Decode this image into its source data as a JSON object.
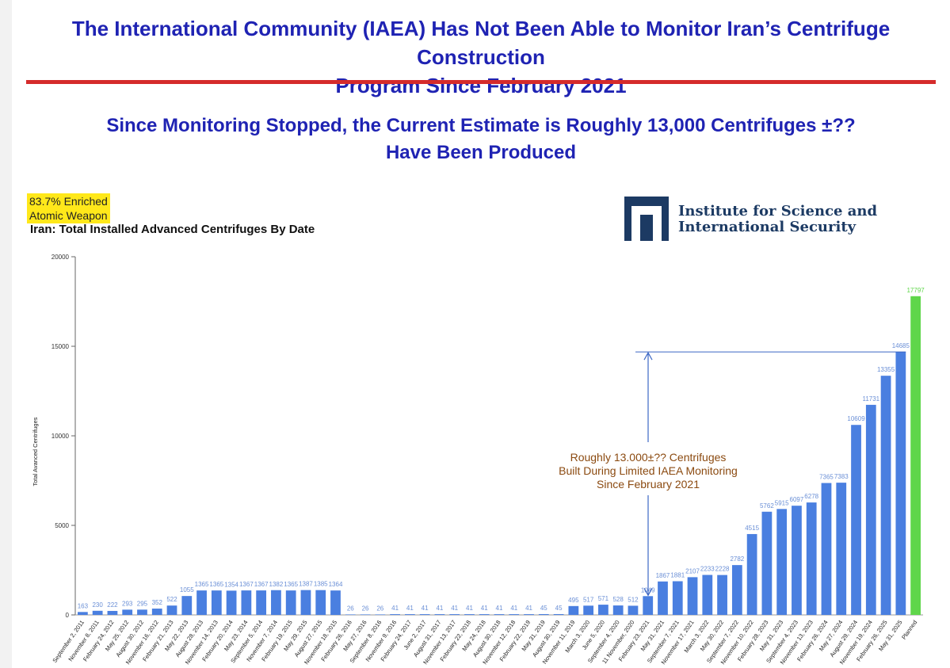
{
  "slide": {
    "title_line1": "The International Community (IAEA) Has Not Been Able to Monitor Iran’s Centrifuge Construction",
    "title_line2": "Program Since February 2021",
    "subtitle_line1": "Since Monitoring Stopped, the Current Estimate is Roughly 13,000 Centrifuges ±??",
    "subtitle_line2": "Have Been Produced",
    "weapon_note_line1": "83.7% Enriched",
    "weapon_note_line2": "Atomic Weapon",
    "chart_heading": "Iran: Total Installed Advanced Centrifuges By Date",
    "org_line1": "Institute for Science and",
    "org_line2": "International Security",
    "colors": {
      "title": "#1f23b3",
      "rule": "#d52b2b",
      "bar": "#4a7fe0",
      "planned": "#5fd64a",
      "annotation": "#8b4a10"
    }
  },
  "chart_data": {
    "type": "bar",
    "title": "Iran: Total Installed Advanced Centrifuges By Date",
    "xlabel": "",
    "ylabel": "Total Avanced Centrifuges",
    "ylim": [
      0,
      20000
    ],
    "yticks": [
      0,
      5000,
      10000,
      15000,
      20000
    ],
    "categories": [
      "September 2, 2011",
      "November 8, 2011",
      "February 24, 2012",
      "May 25, 2012",
      "August 30, 2012",
      "November 16, 2012",
      "February 21, 2013",
      "May 22, 2013",
      "August 28, 2013",
      "November 14, 2013",
      "February 20, 2014",
      "May 23, 2014",
      "September 5, 2014",
      "November 7, 2014",
      "February 19, 2015",
      "May 29, 2015",
      "August 27, 2015",
      "November 18, 2015",
      "February 26, 2016",
      "May 27, 2016",
      "September 8, 2016",
      "November 9, 2016",
      "February 24, 2017",
      "June 2, 2017",
      "August 31, 2017",
      "November 13, 2017",
      "February 22, 2018",
      "May 24, 2018",
      "August 30, 2018",
      "November 12, 2018",
      "February 22, 2019",
      "May 31, 2019",
      "August 30, 2019",
      "November 11, 2019",
      "March 3, 2020",
      "June 5, 2020",
      "September 4, 2020",
      "11 November, 2020",
      "February 23, 2021",
      "May 31, 2021",
      "September 7, 2021",
      "November 17, 2021",
      "March 3, 2022",
      "May 30, 2022",
      "September 7, 2022",
      "November 10, 2022",
      "February 28, 2023",
      "May 31, 2023",
      "September 4, 2023",
      "November 13, 2023",
      "February 26, 2024",
      "May 27, 2024",
      "August 29, 2024",
      "November 19, 2024",
      "February 26, 2025",
      "May 31, 2025",
      "Planned"
    ],
    "values": [
      163,
      230,
      222,
      293,
      295,
      352,
      522,
      1055,
      1365,
      1365,
      1354,
      1367,
      1367,
      1382,
      1365,
      1387,
      1385,
      1364,
      26,
      26,
      26,
      41,
      41,
      41,
      41,
      41,
      41,
      41,
      41,
      41,
      41,
      45,
      45,
      495,
      517,
      571,
      528,
      512,
      1049,
      1867,
      1881,
      2107,
      2233,
      2228,
      2782,
      4515,
      5762,
      5915,
      6097,
      6278,
      7365,
      7383,
      10609,
      11731,
      13355,
      14685,
      17797
    ],
    "labels": [
      "163",
      "230",
      "222",
      "293",
      "295",
      "352",
      "522",
      "1055",
      "1365",
      "1365",
      "1354",
      "1367",
      "1367",
      "1382",
      "1365",
      "1387",
      "1385",
      "1364",
      "26",
      "26",
      "26",
      "41",
      "41",
      "41",
      "41",
      "41",
      "41",
      "41",
      "41",
      "41",
      "41",
      "45",
      "45",
      "495",
      "517",
      "571",
      "528",
      "512",
      "1049",
      "1867",
      "1881",
      "2107",
      "2233",
      "2228",
      "2782",
      "4515",
      "5762",
      "5915",
      "6097",
      "6278",
      "7365",
      "7383",
      "10609",
      "11731",
      "13355",
      "14685",
      "17797"
    ],
    "series_colors": {
      "reported": "#4a7fe0",
      "planned": "#5fd64a"
    },
    "annotation": {
      "lines": [
        "Roughly 13.000±?? Centrifuges",
        "Built During Limited IAEA Monitoring",
        "Since February 2021"
      ],
      "from_value": 1049,
      "to_value": 14685
    }
  }
}
